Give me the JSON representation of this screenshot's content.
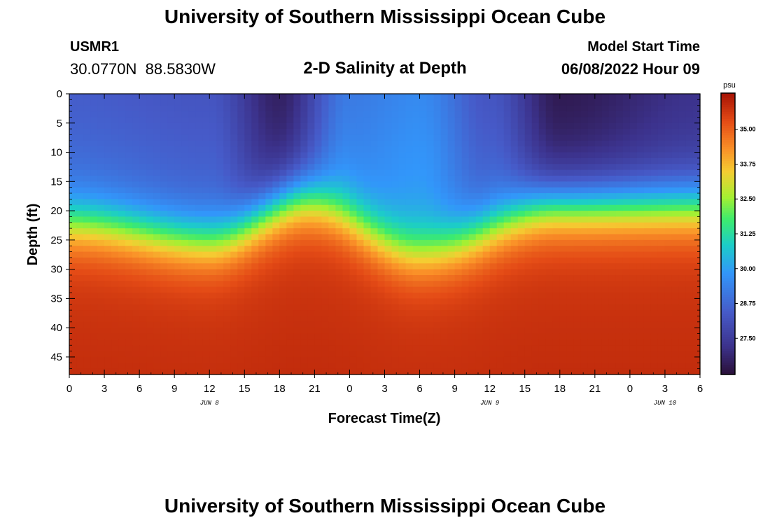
{
  "header": {
    "title": "University of Southern Mississippi Ocean Cube",
    "station": "USMR1",
    "coordinates": "30.0770N  88.5830W",
    "subtitle": "2-D Salinity at Depth",
    "model_start_label": "Model Start Time",
    "model_start_value": "06/08/2022 Hour 09"
  },
  "footer": {
    "title": "University of Southern Mississippi Ocean Cube"
  },
  "chart_data": {
    "type": "heatmap",
    "title": "2-D Salinity at Depth",
    "xlabel": "Forecast Time(Z)",
    "ylabel": "Depth (ft)",
    "x_hours_range": [
      0,
      54
    ],
    "x_ticks": [
      "0",
      "3",
      "6",
      "9",
      "12",
      "15",
      "18",
      "21",
      "0",
      "3",
      "6",
      "9",
      "12",
      "15",
      "18",
      "21",
      "0",
      "3",
      "6"
    ],
    "date_labels": [
      {
        "label": "JUN 8",
        "hour": 12
      },
      {
        "label": "JUN 9",
        "hour": 36
      },
      {
        "label": "JUN 10",
        "hour": 51
      }
    ],
    "y_range": [
      0,
      48
    ],
    "y_ticks": [
      "0",
      "5",
      "10",
      "15",
      "20",
      "25",
      "30",
      "35",
      "40",
      "45"
    ],
    "colorbar": {
      "unit": "psu",
      "range": [
        26.2,
        36.3
      ],
      "ticks": [
        "35.00",
        "33.75",
        "32.50",
        "31.25",
        "30.00",
        "28.75",
        "27.50"
      ],
      "tick_values": [
        35.0,
        33.75,
        32.5,
        31.25,
        30.0,
        28.75,
        27.5
      ]
    },
    "halocline_depth_ft": [
      {
        "hour": 0,
        "depth": 22
      },
      {
        "hour": 12,
        "depth": 25
      },
      {
        "hour": 20,
        "depth": 18
      },
      {
        "hour": 30,
        "depth": 27
      },
      {
        "hour": 42,
        "depth": 19
      },
      {
        "hour": 54,
        "depth": 19
      }
    ],
    "surface_salinity_psu": [
      {
        "hour": 0,
        "value": 28.8
      },
      {
        "hour": 12,
        "value": 28.6
      },
      {
        "hour": 18,
        "value": 27.0
      },
      {
        "hour": 24,
        "value": 29.5
      },
      {
        "hour": 30,
        "value": 29.9
      },
      {
        "hour": 36,
        "value": 28.6
      },
      {
        "hour": 42,
        "value": 26.8
      },
      {
        "hour": 54,
        "value": 27.5
      }
    ],
    "bottom_salinity_psu": 35.6
  }
}
